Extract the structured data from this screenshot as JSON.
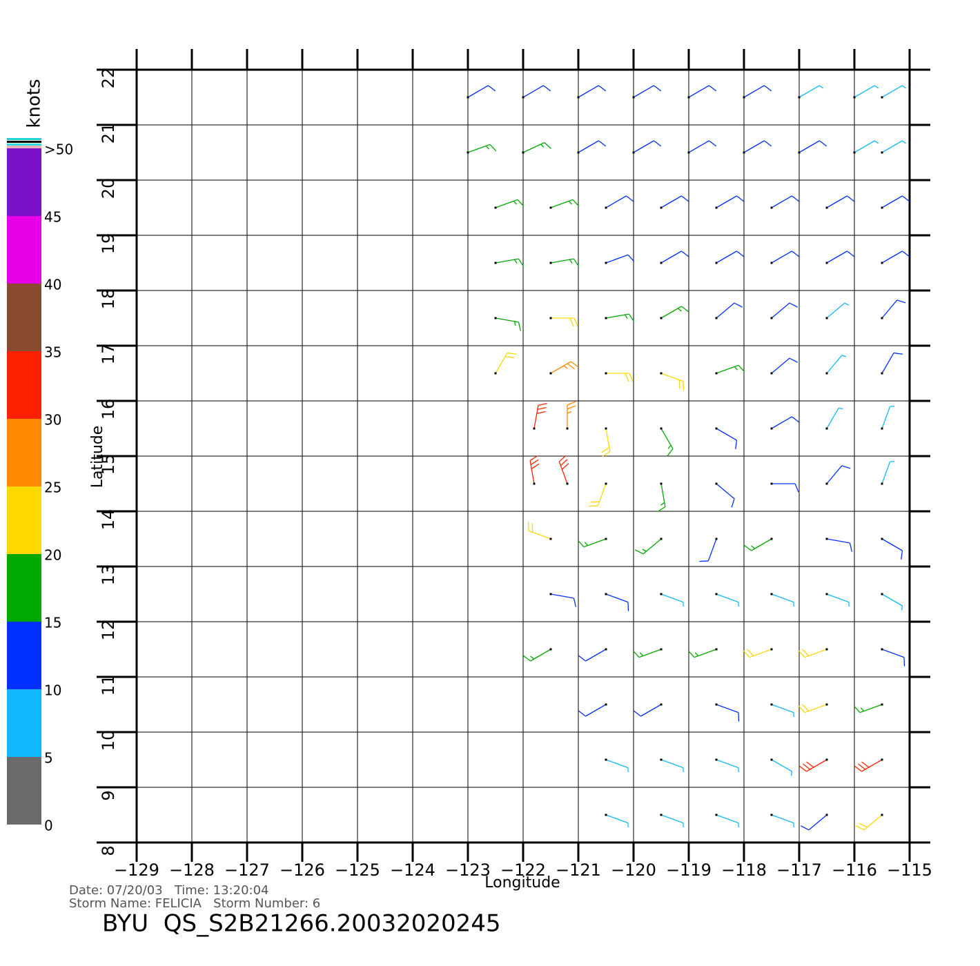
{
  "chart_data": {
    "type": "wind-barb",
    "x_label": "Longitude",
    "y_label": "Latitude",
    "xlim": [
      -129,
      -115
    ],
    "ylim": [
      8,
      22
    ],
    "xticks": [
      {
        "value": -129,
        "label": "−129"
      },
      {
        "value": -128,
        "label": "−128"
      },
      {
        "value": -127,
        "label": "−127"
      },
      {
        "value": -126,
        "label": "−126"
      },
      {
        "value": -125,
        "label": "−125"
      },
      {
        "value": -124,
        "label": "−124"
      },
      {
        "value": -123,
        "label": "−123"
      },
      {
        "value": -122,
        "label": "−122"
      },
      {
        "value": -121,
        "label": "−121"
      },
      {
        "value": -120,
        "label": "−120"
      },
      {
        "value": -119,
        "label": "−119"
      },
      {
        "value": -118,
        "label": "−118"
      },
      {
        "value": -117,
        "label": "−117"
      },
      {
        "value": -116,
        "label": "−116"
      },
      {
        "value": -115,
        "label": "−115"
      }
    ],
    "yticks": [
      8,
      9,
      10,
      11,
      12,
      13,
      14,
      15,
      16,
      17,
      18,
      19,
      20,
      21,
      22
    ],
    "grid": true,
    "info_lines": [
      "Date: 07/20/03   Time: 13:20:04",
      "Storm Name: FELICIA   Storm Number: 6"
    ],
    "product": "BYU  QS_S2B21266.20032020245",
    "colorbar": {
      "title": "knots",
      "ticks": [
        0,
        5,
        10,
        15,
        20,
        25,
        30,
        35,
        40,
        45,
        {
          "value": 50,
          "label": ">50"
        }
      ],
      "colors": [
        "#6a6a6a",
        "#10b8ff",
        "#0030ff",
        "#00a800",
        "#ffd800",
        "#ff8a00",
        "#ff2000",
        "#8a4a30",
        "#e800e8",
        "#7a10c8"
      ]
    },
    "barb_rows": [
      {
        "lat": 21.5,
        "lon": [
          -123,
          -122,
          -121,
          -120,
          -119,
          -118,
          -117,
          -116,
          -115.5
        ],
        "speed": [
          12,
          13,
          12,
          11,
          10,
          10,
          9,
          8,
          8
        ],
        "direction": [
          60,
          60,
          60,
          60,
          60,
          60,
          60,
          60,
          60
        ]
      },
      {
        "lat": 20.5,
        "lon": [
          -123,
          -122,
          -121,
          -120,
          -119,
          -118,
          -117,
          -116,
          -115.5
        ],
        "speed": [
          17,
          16,
          13,
          12,
          12,
          11,
          10,
          9,
          8
        ],
        "direction": [
          70,
          65,
          60,
          60,
          60,
          60,
          60,
          60,
          60
        ]
      },
      {
        "lat": 19.5,
        "lon": [
          -122.5,
          -121.5,
          -120.5,
          -119.5,
          -118.5,
          -117.5,
          -116.5,
          -115.5
        ],
        "speed": [
          17,
          17,
          14,
          12,
          12,
          11,
          11,
          10
        ],
        "direction": [
          70,
          70,
          60,
          60,
          60,
          60,
          60,
          60
        ]
      },
      {
        "lat": 18.5,
        "lon": [
          -122.5,
          -121.5,
          -120.5,
          -119.5,
          -118.5,
          -117.5,
          -116.5,
          -115.5
        ],
        "speed": [
          18,
          17,
          13,
          12,
          12,
          11,
          11,
          11
        ],
        "direction": [
          80,
          80,
          70,
          60,
          60,
          60,
          60,
          60
        ]
      },
      {
        "lat": 17.5,
        "lon": [
          -122.5,
          -121.5,
          -120.5,
          -119.5,
          -118.5,
          -117.5,
          -116.5,
          -115.5
        ],
        "speed": [
          19,
          21,
          18,
          15,
          13,
          11,
          9,
          12
        ],
        "direction": [
          100,
          90,
          80,
          60,
          50,
          50,
          50,
          40
        ]
      },
      {
        "lat": 16.5,
        "lon": [
          -122.5,
          -121.5,
          -120.5,
          -119.5,
          -118.5,
          -117.5,
          -116.5,
          -115.5
        ],
        "speed": [
          22,
          25,
          24,
          20,
          15,
          12,
          8,
          10
        ],
        "direction": [
          30,
          60,
          90,
          110,
          70,
          50,
          40,
          30
        ]
      },
      {
        "lat": 15.5,
        "lon": [
          -121.8,
          -121.2,
          -120.5,
          -119.5,
          -118.5,
          -117.5,
          -116.5,
          -115.5
        ],
        "speed": [
          30,
          28,
          24,
          18,
          13,
          10,
          8,
          8
        ],
        "direction": [
          10,
          0,
          170,
          150,
          120,
          60,
          30,
          20
        ]
      },
      {
        "lat": 14.5,
        "lon": [
          -121.8,
          -121.2,
          -120.5,
          -119.5,
          -118.5,
          -117.5,
          -116.5,
          -115.5
        ],
        "speed": [
          33,
          30,
          22,
          17,
          12,
          10,
          10,
          6
        ],
        "direction": [
          350,
          340,
          200,
          170,
          130,
          90,
          40,
          20
        ]
      },
      {
        "lat": 13.5,
        "lon": [
          -121.5,
          -120.5,
          -119.5,
          -118.5,
          -117.5,
          -116.5,
          -115.5
        ],
        "speed": [
          24,
          17,
          15,
          12,
          16,
          12,
          10
        ],
        "direction": [
          290,
          250,
          230,
          200,
          240,
          100,
          120
        ]
      },
      {
        "lat": 12.5,
        "lon": [
          -121.5,
          -120.5,
          -119.5,
          -118.5,
          -117.5,
          -116.5,
          -115.5
        ],
        "speed": [
          12,
          12,
          9,
          8,
          9,
          8,
          6
        ],
        "direction": [
          100,
          110,
          110,
          110,
          110,
          110,
          120
        ]
      },
      {
        "lat": 11.5,
        "lon": [
          -121.5,
          -120.5,
          -119.5,
          -118.5,
          -117.5,
          -116.5,
          -115.5
        ],
        "speed": [
          17,
          13,
          16,
          18,
          20,
          22,
          12
        ],
        "direction": [
          240,
          240,
          250,
          250,
          250,
          250,
          110
        ]
      },
      {
        "lat": 10.5,
        "lon": [
          -120.5,
          -119.5,
          -118.5,
          -117.5,
          -116.5,
          -115.5
        ],
        "speed": [
          11,
          12,
          10,
          9,
          22,
          19
        ],
        "direction": [
          240,
          240,
          110,
          110,
          250,
          250
        ]
      },
      {
        "lat": 9.5,
        "lon": [
          -120.5,
          -119.5,
          -118.5,
          -117.5,
          -116.5,
          -115.5
        ],
        "speed": [
          8,
          8,
          7,
          8,
          30,
          32
        ],
        "direction": [
          110,
          110,
          110,
          120,
          240,
          240
        ]
      },
      {
        "lat": 8.5,
        "lon": [
          -120.5,
          -119.5,
          -118.5,
          -117.5,
          -116.5,
          -115.5
        ],
        "speed": [
          7,
          8,
          7,
          7,
          14,
          22
        ],
        "direction": [
          110,
          110,
          110,
          110,
          230,
          230
        ]
      }
    ]
  }
}
